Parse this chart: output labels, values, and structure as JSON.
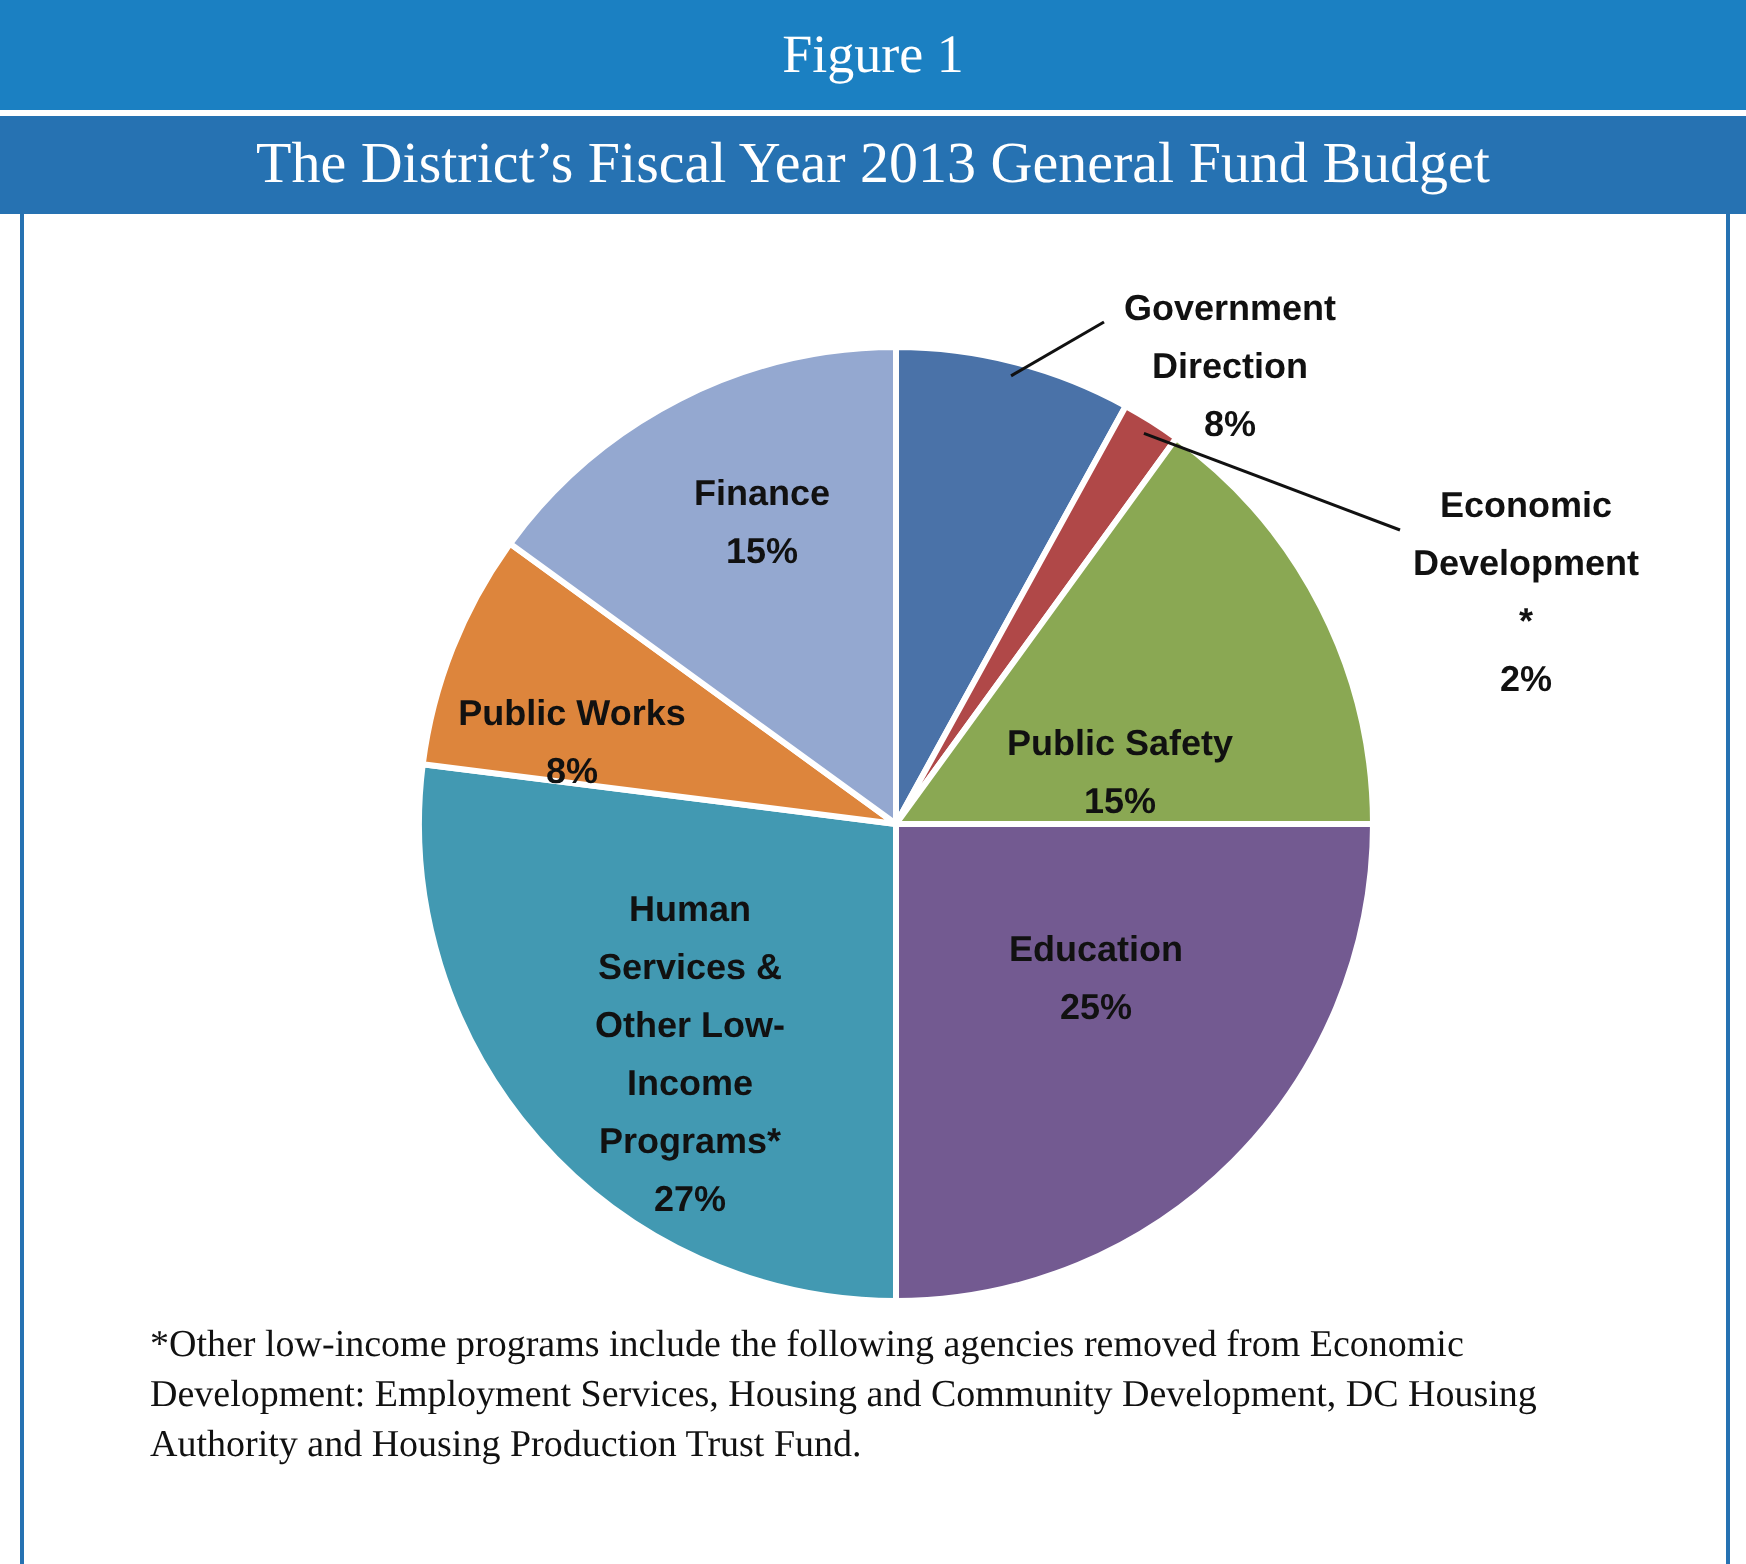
{
  "chart_data": {
    "type": "pie",
    "title": "Figure 1",
    "subtitle": "The District’s Fiscal Year 2013 General Fund Budget",
    "categories": [
      "Government Direction",
      "Economic Development *",
      "Public Safety",
      "Education",
      "Human Services & Other Low-Income Programs*",
      "Public Works",
      "Finance"
    ],
    "values": [
      8,
      2,
      15,
      25,
      27,
      8,
      15
    ],
    "value_labels": [
      "8%",
      "2%",
      "15%",
      "25%",
      "27%",
      "8%",
      "15%"
    ],
    "colors": [
      "#4a72a8",
      "#b04848",
      "#8aa853",
      "#735a91",
      "#4299b2",
      "#dd853c",
      "#94a8d0"
    ],
    "legend": false,
    "annotations": [
      "*Other low-income programs include the following agencies removed from Economic Development: Employment Services, Housing and Community Development, DC Housing Authority and Housing Production Trust Fund."
    ]
  }
}
